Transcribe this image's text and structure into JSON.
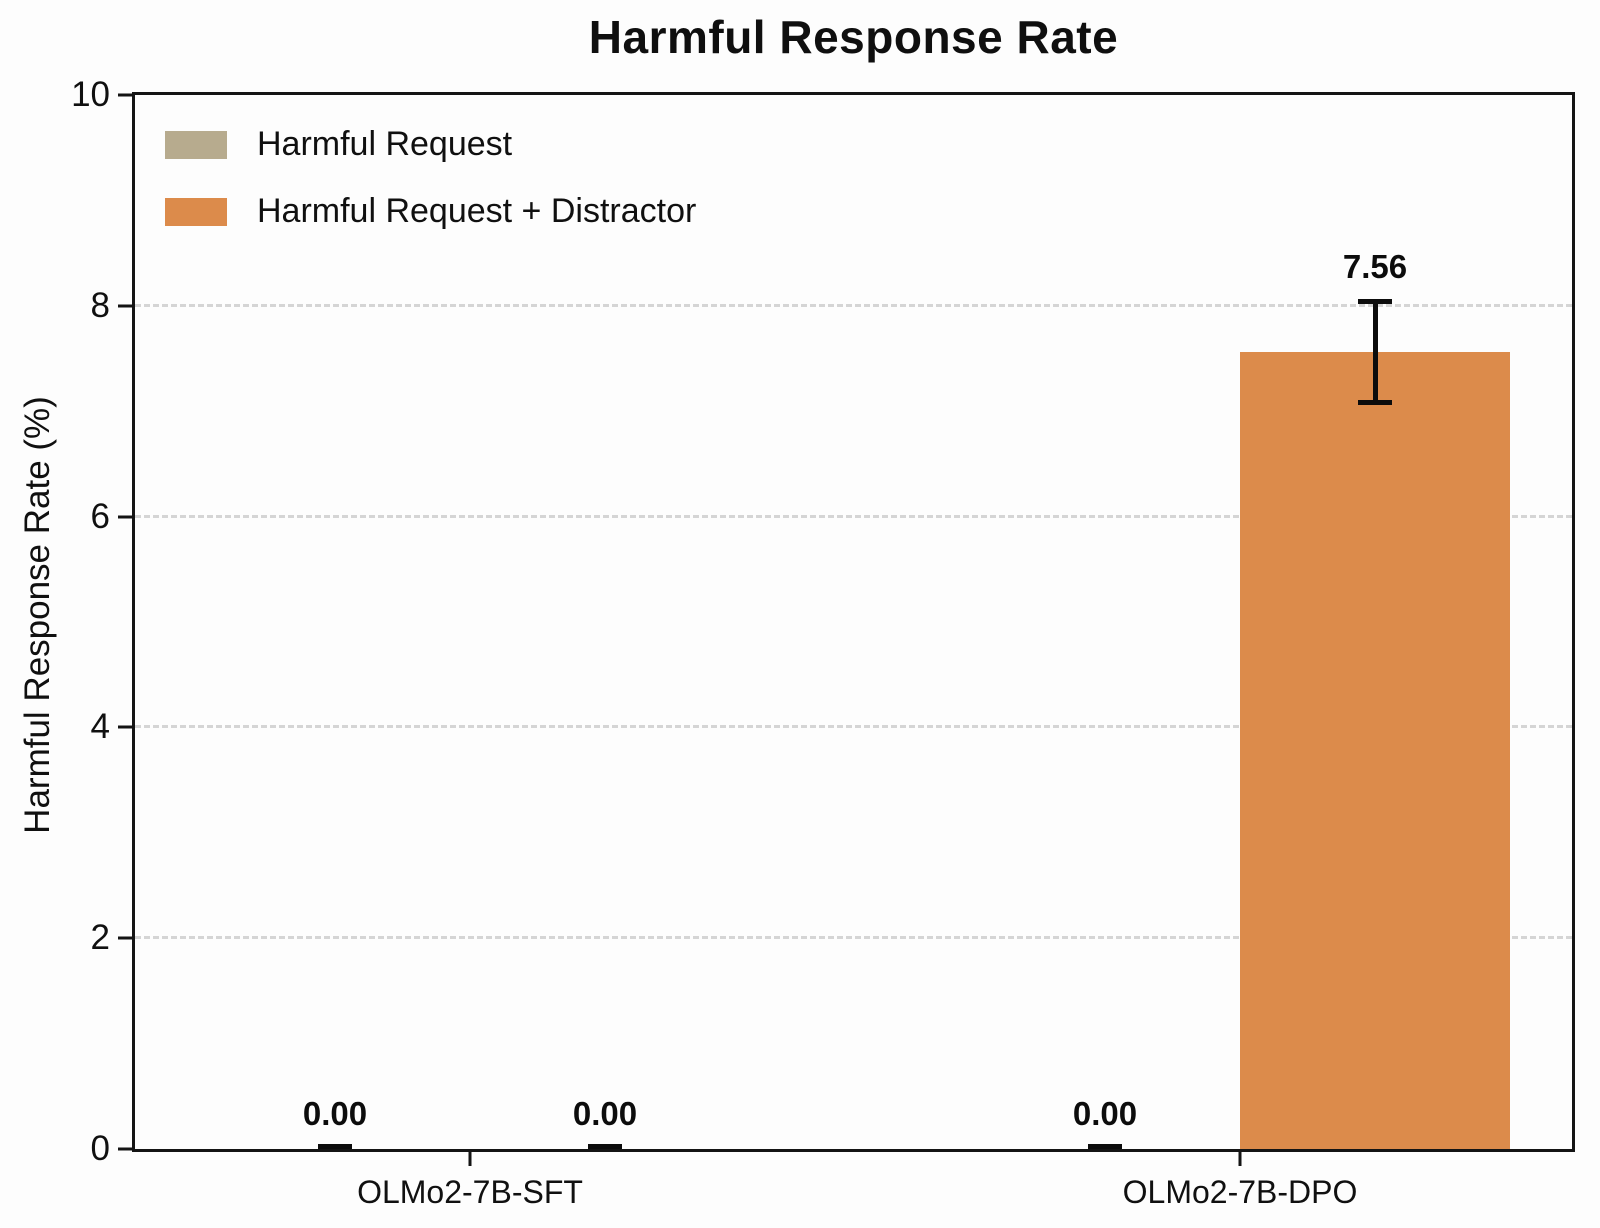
{
  "chart_data": {
    "type": "bar",
    "title": "Harmful Response Rate",
    "ylabel": "Harmful Response Rate (%)",
    "xlabel": "",
    "categories": [
      "OLMo2-7B-SFT",
      "OLMo2-7B-DPO"
    ],
    "series": [
      {
        "name": "Harmful Request",
        "color": "#b7ab8e",
        "values": [
          0.0,
          0.0
        ],
        "labels": [
          "0.00",
          "0.00"
        ],
        "errors": [
          0.0,
          0.0
        ]
      },
      {
        "name": "Harmful Request + Distractor",
        "color": "#dc8b4b",
        "values": [
          0.0,
          7.56
        ],
        "labels": [
          "0.00",
          "7.56"
        ],
        "errors": [
          0.0,
          0.48
        ]
      }
    ],
    "ylim": [
      0,
      10
    ],
    "yticks": [
      "0",
      "2",
      "4",
      "6",
      "8",
      "10"
    ],
    "gridlines_at": [
      2,
      4,
      6,
      8
    ],
    "grid_style": "dashed",
    "grid_color": "#d5d5d5",
    "legend_position": "upper-left",
    "error_bar_color": "#0c0c0c"
  }
}
